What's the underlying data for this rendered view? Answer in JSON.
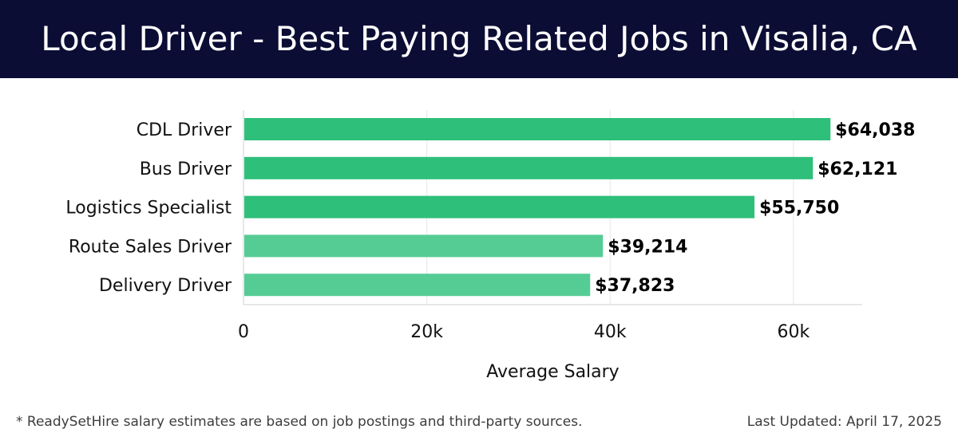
{
  "header": {
    "title": "Local Driver - Best Paying Related Jobs in Visalia, CA"
  },
  "footer": {
    "note": "* ReadySetHire salary estimates are based on job postings and third-party sources.",
    "updated": "Last Updated: April 17, 2025"
  },
  "colors": {
    "header_bg": "#0c0d35",
    "bar_strong": "#2ebf7a",
    "bar_light": "#56cc95"
  },
  "chart_data": {
    "type": "bar",
    "orientation": "horizontal",
    "title": "Local Driver - Best Paying Related Jobs in Visalia, CA",
    "xlabel": "Average Salary",
    "ylabel": "",
    "xlim": [
      0,
      67500
    ],
    "xticks": [
      0,
      20000,
      40000,
      60000
    ],
    "xtick_labels": [
      "0",
      "20k",
      "40k",
      "60k"
    ],
    "grid": true,
    "categories": [
      "CDL Driver",
      "Bus Driver",
      "Logistics Specialist",
      "Route Sales Driver",
      "Delivery Driver"
    ],
    "values": [
      64038,
      62121,
      55750,
      39214,
      37823
    ],
    "value_labels": [
      "$64,038",
      "$62,121",
      "$55,750",
      "$39,214",
      "$37,823"
    ],
    "bar_colors": [
      "#2ebf7a",
      "#2ebf7a",
      "#2ebf7a",
      "#56cc95",
      "#56cc95"
    ]
  }
}
